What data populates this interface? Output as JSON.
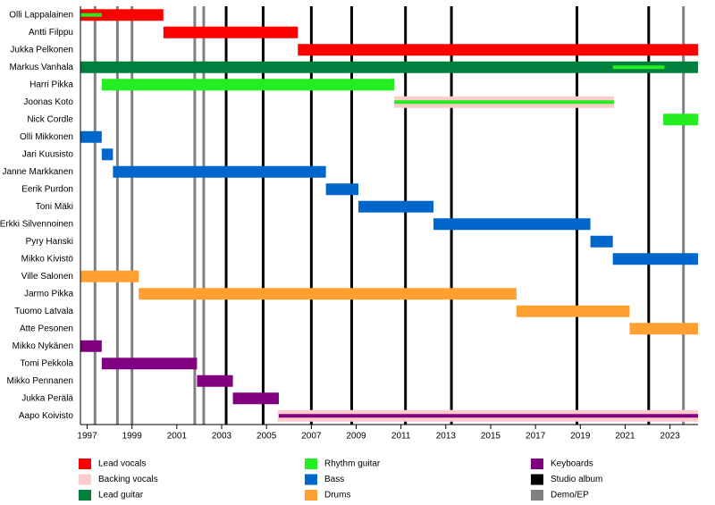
{
  "chart_data": {
    "type": "timeline",
    "categories": [
      "Olli Lappalainen",
      "Antti Filppu",
      "Jukka Pelkonen",
      "Markus Vanhala",
      "Harri Pikka",
      "Joonas Koto",
      "Nick Cordle",
      "Olli Mikkonen",
      "Jari Kuusisto",
      "Janne Markkanen",
      "Eerik Purdon",
      "Toni Mäki",
      "Erkki Silvennoinen",
      "Pyry Hanski",
      "Mikko Kivistö",
      "Ville Salonen",
      "Jarmo Pikka",
      "Tuomo Latvala",
      "Atte Pesonen",
      "Mikko Nykänen",
      "Tomi Pekkola",
      "Mikko Pennanen",
      "Jukka Perälä",
      "Aapo Koivisto"
    ],
    "series": [
      {
        "name": "Lead vocals",
        "color": "#ff0000",
        "values": [
          [
            1996.7,
            2000.4
          ],
          [
            2000.4,
            2006.4
          ],
          [
            2006.4,
            2024.25
          ],
          null,
          null,
          null,
          null,
          null,
          null,
          null,
          null,
          null,
          null,
          null,
          null,
          null,
          null,
          null,
          null,
          null,
          null,
          null,
          null,
          null
        ]
      },
      {
        "name": "Backing vocals",
        "color": "#ffcccc",
        "values": [
          null,
          null,
          null,
          null,
          null,
          [
            2010.7,
            2020.5
          ],
          null,
          null,
          null,
          null,
          null,
          null,
          null,
          null,
          null,
          null,
          null,
          null,
          null,
          null,
          null,
          null,
          null,
          [
            2005.5,
            2024.25
          ]
        ]
      },
      {
        "name": "Lead guitar",
        "color": "#007f3f",
        "values": [
          null,
          null,
          null,
          [
            1996.7,
            2024.25
          ],
          null,
          null,
          null,
          null,
          null,
          null,
          null,
          null,
          null,
          null,
          null,
          null,
          null,
          null,
          null,
          null,
          null,
          null,
          null,
          null
        ]
      },
      {
        "name": "Rhythm guitar",
        "color": "#22ee22",
        "values": [
          [
            1996.7,
            1997.65
          ],
          null,
          null,
          [
            2020.45,
            2022.75
          ],
          [
            1997.65,
            2010.7
          ],
          [
            2010.7,
            2020.5
          ],
          [
            2022.7,
            2024.25
          ],
          null,
          null,
          null,
          null,
          null,
          null,
          null,
          null,
          null,
          null,
          null,
          null,
          null,
          null,
          null,
          null,
          null
        ]
      },
      {
        "name": "Bass",
        "color": "#0066cc",
        "values": [
          null,
          null,
          null,
          null,
          null,
          null,
          null,
          [
            1996.7,
            1997.65
          ],
          [
            1997.65,
            1998.15
          ],
          [
            1998.15,
            2007.65
          ],
          [
            2007.65,
            2009.1
          ],
          [
            2009.1,
            2012.45
          ],
          [
            2012.45,
            2019.45
          ],
          [
            2019.45,
            2020.45
          ],
          [
            2020.45,
            2024.25
          ],
          null,
          null,
          null,
          null,
          null,
          null,
          null,
          null,
          null
        ]
      },
      {
        "name": "Drums",
        "color": "#ffa030",
        "values": [
          null,
          null,
          null,
          null,
          null,
          null,
          null,
          null,
          null,
          null,
          null,
          null,
          null,
          null,
          null,
          [
            1996.7,
            1999.3
          ],
          [
            1999.3,
            2016.15
          ],
          [
            2016.15,
            2021.2
          ],
          [
            2021.2,
            2024.25
          ],
          null,
          null,
          null,
          null,
          null
        ]
      },
      {
        "name": "Keyboards",
        "color": "#800080",
        "values": [
          null,
          null,
          null,
          null,
          null,
          null,
          null,
          null,
          null,
          null,
          null,
          null,
          null,
          null,
          null,
          null,
          null,
          null,
          null,
          [
            1996.7,
            1997.65
          ],
          [
            1997.65,
            2001.9
          ],
          [
            2001.9,
            2003.5
          ],
          [
            2003.5,
            2005.55
          ],
          [
            2005.55,
            2024.25
          ]
        ]
      }
    ],
    "events": [
      {
        "name": "Studio album",
        "color": "#000000",
        "values": [
          2003.2,
          2004.85,
          2007.0,
          2008.8,
          2011.2,
          2013.25,
          2018.85,
          2022.05
        ]
      },
      {
        "name": "Demo/EP",
        "color": "#808080",
        "values": [
          1997.35,
          1998.35,
          1999.0,
          2001.8,
          2002.2,
          2023.6
        ]
      }
    ],
    "xlim": [
      1996.7,
      2024.25
    ],
    "xticks": [
      1997,
      1999,
      2001,
      2003,
      2005,
      2007,
      2009,
      2011,
      2013,
      2015,
      2017,
      2019,
      2021,
      2023
    ]
  }
}
